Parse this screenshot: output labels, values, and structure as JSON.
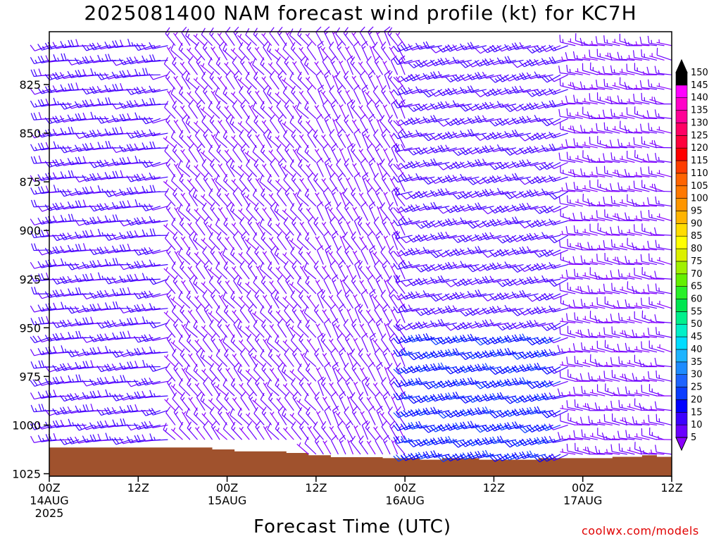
{
  "title": "2025081400 NAM forecast wind profile (kt) for KC7H",
  "xlabel": "Forecast Time (UTC)",
  "watermark": "coolwx.com/models",
  "chart_data": {
    "type": "wind_barb_profile",
    "yaxis": {
      "label": "",
      "ticks": [
        825,
        850,
        875,
        900,
        925,
        950,
        975,
        1000,
        1025
      ],
      "range": [
        1025,
        805
      ],
      "unit": "hPa"
    },
    "xaxis": {
      "ticks": [
        {
          "hour": 0,
          "label": [
            "00Z",
            "14AUG",
            "2025"
          ]
        },
        {
          "hour": 12,
          "label": [
            "12Z"
          ]
        },
        {
          "hour": 24,
          "label": [
            "00Z",
            "15AUG"
          ]
        },
        {
          "hour": 36,
          "label": [
            "12Z"
          ]
        },
        {
          "hour": 48,
          "label": [
            "00Z",
            "16AUG"
          ]
        },
        {
          "hour": 60,
          "label": [
            "12Z"
          ]
        },
        {
          "hour": 72,
          "label": [
            "00Z",
            "17AUG"
          ]
        },
        {
          "hour": 84,
          "label": [
            "12Z"
          ]
        }
      ],
      "range_hours": [
        0,
        84
      ]
    },
    "colorbar": {
      "labels": [
        5,
        10,
        15,
        20,
        25,
        30,
        35,
        40,
        45,
        50,
        55,
        60,
        65,
        70,
        75,
        80,
        85,
        90,
        95,
        100,
        105,
        110,
        115,
        120,
        125,
        130,
        135,
        140,
        145,
        150
      ],
      "colors": [
        "#8a00ff",
        "#6a00ff",
        "#3c00ff",
        "#0000ff",
        "#0a3cff",
        "#1e64ff",
        "#1e8cff",
        "#1eb4ff",
        "#00dcff",
        "#00f0c8",
        "#00f08c",
        "#00e650",
        "#28f028",
        "#64f000",
        "#a0f000",
        "#dcf000",
        "#ffff00",
        "#ffdc00",
        "#ffb400",
        "#ff9600",
        "#ff7800",
        "#ff6400",
        "#ff3c00",
        "#ff0000",
        "#ff003c",
        "#ff0064",
        "#ff0096",
        "#ff00c8",
        "#ff00ff",
        "#000000"
      ]
    },
    "terrain": {
      "color": "#a0522d",
      "surface_pressure": [
        {
          "hour": 0,
          "p": 1011.5
        },
        {
          "hour": 10,
          "p": 1011.5
        },
        {
          "hour": 18,
          "p": 1011.5
        },
        {
          "hour": 22,
          "p": 1012.5
        },
        {
          "hour": 25,
          "p": 1013.5
        },
        {
          "hour": 32,
          "p": 1014.3
        },
        {
          "hour": 35,
          "p": 1015.5
        },
        {
          "hour": 38,
          "p": 1016.5
        },
        {
          "hour": 45,
          "p": 1017.0
        },
        {
          "hour": 50,
          "p": 1017.8
        },
        {
          "hour": 53,
          "p": 1017.0
        },
        {
          "hour": 58,
          "p": 1017.8
        },
        {
          "hour": 62,
          "p": 1017.8
        },
        {
          "hour": 66,
          "p": 1017.0
        },
        {
          "hour": 76,
          "p": 1016.3
        },
        {
          "hour": 80,
          "p": 1015.5
        },
        {
          "hour": 82,
          "p": 1016.3
        },
        {
          "hour": 84,
          "p": 1016.3
        }
      ]
    },
    "wind_regimes": [
      {
        "hours": [
          0,
          16
        ],
        "dir_deg": 260,
        "speed_kt": 15
      },
      {
        "hours": [
          17,
          36
        ],
        "dir_deg": 320,
        "speed_kt": 10
      },
      {
        "hours": [
          37,
          48
        ],
        "dir_deg": 330,
        "speed_kt": 10
      },
      {
        "hours": [
          49,
          70
        ],
        "dir_deg": 250,
        "speed_kt": 15
      },
      {
        "hours": [
          71,
          84
        ],
        "dir_deg": 280,
        "speed_kt": 10
      }
    ]
  }
}
